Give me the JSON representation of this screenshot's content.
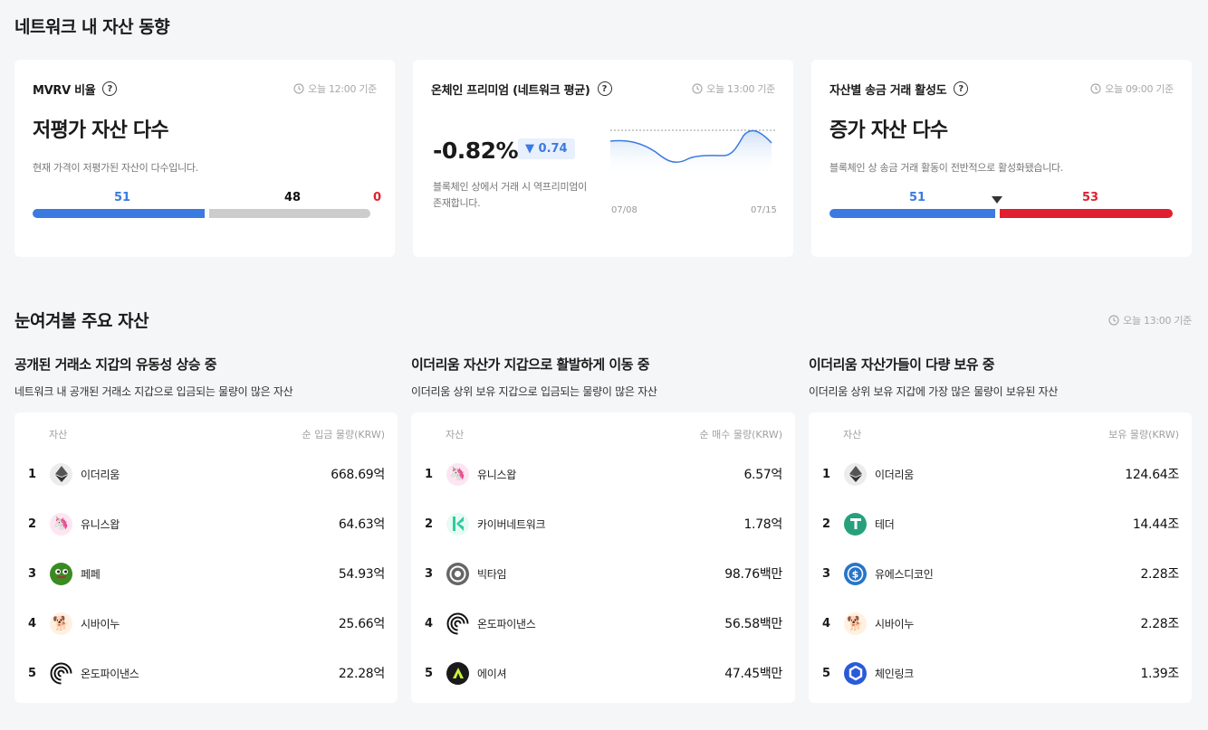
{
  "network_section": {
    "title": "네트워크 내 자산 동향"
  },
  "mvrv": {
    "title": "MVRV 비율",
    "timestamp": "오늘 12:00 기준",
    "headline": "저평가 자산 다수",
    "description": "현재 가격이 저평가된 자산이 다수입니다.",
    "undervalued": "51",
    "neutral": "48",
    "overvalued": "0",
    "colors": {
      "under": "#3b7ae0",
      "neutral": "#cccccc",
      "over": "#e02030"
    }
  },
  "premium": {
    "title": "온체인 프리미엄 (네트워크 평균)",
    "timestamp": "오늘 13:00 기준",
    "value": "-0.82%",
    "change": "▼ 0.74",
    "description": "블록체인 상에서 거래 시 역프리미엄이 존재합니다.",
    "start_date": "07/08",
    "end_date": "07/15"
  },
  "activity": {
    "title": "자산별 송금 거래 활성도",
    "timestamp": "오늘 09:00 기준",
    "headline": "증가 자산 다수",
    "description": "블록체인 상 송금 거래 활동이 전반적으로 활성화됐습니다.",
    "decrease": "51",
    "increase": "53"
  },
  "watch_section": {
    "title": "눈여겨볼 주요 자산",
    "timestamp": "오늘 13:00 기준"
  },
  "lists": [
    {
      "title": "공개된 거래소 지갑의 유동성 상승 중",
      "description": "네트워크 내 공개된 거래소 지갑으로 입금되는 물량이 많은 자산",
      "col_asset": "자산",
      "col_value": "순 입금 물량(KRW)",
      "rows": [
        {
          "rank": "1",
          "name": "이더리움",
          "value": "668.69억",
          "icon": "ethereum-icon"
        },
        {
          "rank": "2",
          "name": "유니스왑",
          "value": "64.63억",
          "icon": "uniswap-icon"
        },
        {
          "rank": "3",
          "name": "페페",
          "value": "54.93억",
          "icon": "pepe-icon"
        },
        {
          "rank": "4",
          "name": "시바이누",
          "value": "25.66억",
          "icon": "shiba-inu-icon"
        },
        {
          "rank": "5",
          "name": "온도파이낸스",
          "value": "22.28억",
          "icon": "ondo-finance-icon"
        }
      ]
    },
    {
      "title": "이더리움 자산가 지갑으로 활발하게 이동 중",
      "description": "이더리움 상위 보유 지갑으로 입금되는 물량이 많은 자산",
      "col_asset": "자산",
      "col_value": "순 매수 물량(KRW)",
      "rows": [
        {
          "rank": "1",
          "name": "유니스왑",
          "value": "6.57억",
          "icon": "uniswap-icon"
        },
        {
          "rank": "2",
          "name": "카이버네트워크",
          "value": "1.78억",
          "icon": "kyber-network-icon"
        },
        {
          "rank": "3",
          "name": "빅타임",
          "value": "98.76백만",
          "icon": "big-time-icon"
        },
        {
          "rank": "4",
          "name": "온도파이낸스",
          "value": "56.58백만",
          "icon": "ondo-finance-icon"
        },
        {
          "rank": "5",
          "name": "에이셔",
          "value": "47.45백만",
          "icon": "aethir-icon"
        }
      ]
    },
    {
      "title": "이더리움 자산가들이 다량 보유 중",
      "description": "이더리움 상위 보유 지갑에 가장 많은 물량이 보유된 자산",
      "col_asset": "자산",
      "col_value": "보유 물량(KRW)",
      "rows": [
        {
          "rank": "1",
          "name": "이더리움",
          "value": "124.64조",
          "icon": "ethereum-icon"
        },
        {
          "rank": "2",
          "name": "테더",
          "value": "14.44조",
          "icon": "tether-icon"
        },
        {
          "rank": "3",
          "name": "유에스디코인",
          "value": "2.28조",
          "icon": "usd-coin-icon"
        },
        {
          "rank": "4",
          "name": "시바이누",
          "value": "2.28조",
          "icon": "shiba-inu-icon"
        },
        {
          "rank": "5",
          "name": "체인링크",
          "value": "1.39조",
          "icon": "chainlink-icon"
        }
      ]
    }
  ]
}
